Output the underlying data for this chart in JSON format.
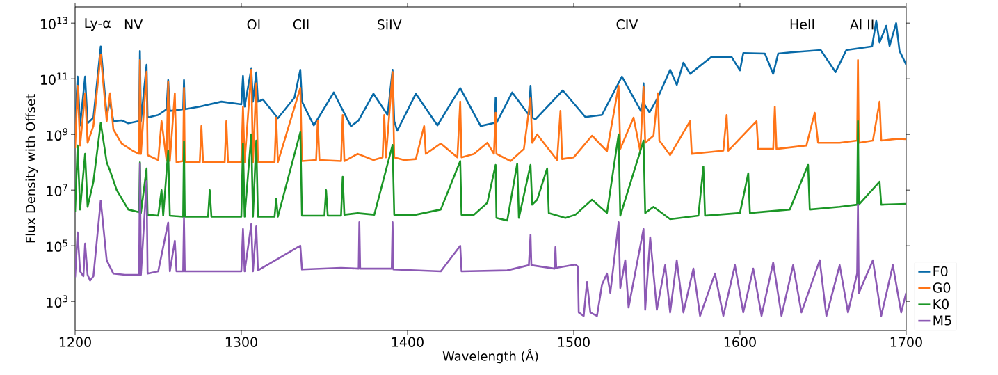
{
  "chart_data": {
    "type": "line",
    "xlabel": "Wavelength (Å)",
    "ylabel": "Flux Density with Offset",
    "log": "y",
    "legend": "bottom right",
    "xlim": [
      1200,
      1700
    ],
    "ylim": [
      90,
      38000000000000.0
    ],
    "xticks": [
      1200,
      1300,
      1400,
      1500,
      1600,
      1700
    ],
    "yticks": [
      {
        "value": 1000.0,
        "label": "10$^{3}$"
      },
      {
        "value": 100000.0,
        "label": "10$^{5}$"
      },
      {
        "value": 10000000.0,
        "label": "10$^{7}$"
      },
      {
        "value": 1000000000.0,
        "label": "10$^{9}$"
      },
      {
        "value": 100000000000.0,
        "label": "10$^{11}$"
      },
      {
        "value": 10000000000000.0,
        "label": "10$^{13}$"
      }
    ],
    "annotations": [
      "Ly-α",
      "NV",
      "OI",
      "CII",
      "SiIV",
      "CIV",
      "HeII",
      "Al II"
    ],
    "series": [
      {
        "name": "F0",
        "color": "#086aa8",
        "x": [
          1200,
          1201.5,
          1203,
          1206,
          1207.5,
          1211,
          1215.4,
          1219,
          1221,
          1223,
          1228,
          1232,
          1238.5,
          1239,
          1239.6,
          1243,
          1243.6,
          1250,
          1255,
          1256,
          1257,
          1265,
          1265.5,
          1266,
          1275,
          1288,
          1300,
          1301,
          1302,
          1306,
          1307,
          1309,
          1310,
          1313,
          1322,
          1332,
          1335.5,
          1336.5,
          1343.6,
          1355.6,
          1366,
          1370.6,
          1379.5,
          1388,
          1391,
          1392,
          1393.8,
          1405,
          1418,
          1431.7,
          1444,
          1452.5,
          1453,
          1453.5,
          1463,
          1473,
          1474,
          1475,
          1477,
          1493.4,
          1507,
          1517,
          1529,
          1540.5,
          1541.7,
          1542,
          1542.5,
          1545.6,
          1550.6,
          1558,
          1562,
          1566,
          1570,
          1583,
          1595,
          1600,
          1602,
          1615,
          1620,
          1623,
          1630.5,
          1648.6,
          1657.5,
          1664,
          1679.5,
          1682,
          1684,
          1688,
          1690,
          1694,
          1696,
          1700
        ],
        "values": [
          2100000000.0,
          120000000000.0,
          2100000000.0,
          120000000000.0,
          2500000000.0,
          4000000000.0,
          1450000000000.0,
          5000000000.0,
          15000000000.0,
          3000000000.0,
          3200000000.0,
          2500000000.0,
          3000000000.0,
          1000000000000.0,
          3000000000.0,
          320000000000.0,
          4000000000.0,
          5000000000.0,
          8000000000.0,
          90000000000.0,
          7000000000.0,
          8000000000.0,
          90000000000.0,
          8000000000.0,
          10000000000.0,
          15000000000.0,
          12000000000.0,
          126000000000.0,
          10000000000.0,
          230000000000.0,
          15000000000.0,
          170000000000.0,
          15000000000.0,
          18000000000.0,
          3800000000.0,
          21000000000.0,
          210000000000.0,
          15000000000.0,
          2100000000.0,
          32000000000.0,
          1950000000.0,
          3200000000.0,
          29000000000.0,
          5000000000.0,
          210000000000.0,
          3000000000.0,
          1350000000.0,
          29000000000.0,
          2100000000.0,
          46000000000.0,
          2000000000.0,
          2600000000.0,
          21000000000.0,
          2600000000.0,
          32000000000.0,
          5000000000.0,
          56000000000.0,
          4000000000.0,
          3500000000.0,
          38000000000.0,
          4200000000.0,
          5000000000.0,
          120000000000.0,
          6800000000.0,
          16000000000.0,
          68000000000.0,
          12000000000.0,
          6200000000.0,
          21000000000.0,
          210000000000.0,
          60000000000.0,
          380000000000.0,
          150000000000.0,
          620000000000.0,
          600000000000.0,
          200000000000.0,
          830000000000.0,
          800000000000.0,
          150000000000.0,
          800000000000.0,
          890000000000.0,
          1070000000000.0,
          174000000000.0,
          1070000000000.0,
          1450000000000.0,
          12000000000000.0,
          2000000000000.0,
          8000000000000.0,
          1500000000000.0,
          10000000000000.0,
          1000000000000.0,
          320000000000.0
        ]
      },
      {
        "name": "G0",
        "color": "#ff7417",
        "x": [
          1200,
          1201.5,
          1203,
          1206,
          1207.5,
          1211,
          1215.4,
          1219,
          1221,
          1223,
          1228,
          1235,
          1238.5,
          1239,
          1239.6,
          1243,
          1243.6,
          1250,
          1252,
          1255,
          1256,
          1257,
          1260,
          1261,
          1265,
          1265.5,
          1266,
          1275,
          1276,
          1277,
          1290,
          1291,
          1292,
          1300,
          1301,
          1302,
          1306,
          1307,
          1309,
          1310,
          1320,
          1321,
          1322,
          1335.5,
          1336.5,
          1345,
          1346,
          1347,
          1360,
          1361,
          1362,
          1370,
          1379.5,
          1385,
          1386,
          1387,
          1391,
          1392,
          1398,
          1405,
          1410,
          1411,
          1420,
          1430,
          1431.7,
          1432.5,
          1440,
          1448,
          1452,
          1453,
          1453.5,
          1462,
          1470,
          1474,
          1475,
          1478,
          1490,
          1492,
          1493,
          1500,
          1511,
          1520,
          1527,
          1528,
          1536,
          1540,
          1542,
          1543,
          1548,
          1550.6,
          1551.5,
          1558,
          1570,
          1571,
          1590,
          1592,
          1593,
          1610,
          1611,
          1620,
          1621,
          1622,
          1640,
          1645,
          1647,
          1660,
          1670.5,
          1671,
          1671.5,
          1680,
          1684,
          1685,
          1695,
          1700
        ],
        "values": [
          320000000.0,
          56000000000.0,
          400000000.0,
          30000000000.0,
          500000000.0,
          2000000000.0,
          740000000000.0,
          3000000000.0,
          30000000000.0,
          1500000000.0,
          470000000.0,
          250000000.0,
          200000000.0,
          470000000000.0,
          200000000.0,
          180000000000.0,
          180000000.0,
          120000000.0,
          3000000000.0,
          120000000.0,
          80000000000.0,
          110000000.0,
          30000000000.0,
          100000000.0,
          110000000.0,
          47000000000.0,
          100000000.0,
          100000000.0,
          2000000000.0,
          100000000.0,
          100000000.0,
          3000000000.0,
          100000000.0,
          100000000.0,
          10000000000.0,
          100000000.0,
          210000000000.0,
          100000000.0,
          68000000000.0,
          100000000.0,
          100000000.0,
          4000000000.0,
          100000000.0,
          47000000000.0,
          110000000.0,
          120000000.0,
          3000000000.0,
          120000000.0,
          110000000.0,
          5000000000.0,
          110000000.0,
          200000000.0,
          120000000.0,
          150000000.0,
          5000000000.0,
          150000000.0,
          174000000000.0,
          150000000.0,
          120000000.0,
          130000000.0,
          2000000000.0,
          200000000.0,
          470000000.0,
          150000000.0,
          15000000000.0,
          150000000.0,
          200000000.0,
          500000000.0,
          200000000.0,
          6000000000.0,
          200000000.0,
          110000000.0,
          300000000.0,
          20000000000.0,
          500000000.0,
          1000000000.0,
          120000000.0,
          7000000000.0,
          130000000.0,
          150000000.0,
          900000000.0,
          250000000.0,
          56000000000.0,
          300000000.0,
          4000000000.0,
          250000000.0,
          50000000000.0,
          500000000.0,
          900000000.0,
          30000000000.0,
          600000000.0,
          180000000.0,
          3000000000.0,
          200000000.0,
          260000000.0,
          5000000000.0,
          260000000.0,
          3000000000.0,
          300000000.0,
          300000000.0,
          10000000000.0,
          300000000.0,
          400000000.0,
          6000000000.0,
          500000000.0,
          500000000.0,
          600000000.0,
          470000000000.0,
          500000000.0,
          600000000.0,
          15000000000.0,
          600000000.0,
          700000000.0,
          680000000.0
        ]
      },
      {
        "name": "K0",
        "color": "#1b9626",
        "x": [
          1200,
          1201.5,
          1203,
          1206,
          1207.5,
          1211,
          1215.4,
          1219,
          1221,
          1225,
          1232,
          1238.5,
          1239,
          1239.6,
          1243,
          1243.6,
          1250,
          1252,
          1253,
          1256,
          1257,
          1265,
          1265.5,
          1266,
          1280,
          1281,
          1282,
          1300,
          1301,
          1302,
          1306,
          1307,
          1309,
          1310,
          1320,
          1321,
          1322,
          1335.5,
          1336.5,
          1350,
          1351,
          1352,
          1360,
          1361,
          1362,
          1370,
          1380,
          1391,
          1392,
          1405,
          1420,
          1431.7,
          1432.5,
          1440,
          1448,
          1453,
          1453.5,
          1460,
          1466,
          1467,
          1474,
          1475,
          1478,
          1484,
          1485,
          1495,
          1501,
          1511,
          1520,
          1527,
          1528,
          1542,
          1543,
          1548,
          1558,
          1575,
          1578,
          1579,
          1600,
          1605,
          1606,
          1630,
          1641,
          1642,
          1660,
          1670.5,
          1671,
          1671.5,
          1684,
          1685,
          1700
        ],
        "values": [
          1700000.0,
          400000000.0,
          2000000.0,
          200000000.0,
          2500000.0,
          20000000.0,
          2600000000.0,
          100000000.0,
          50000000.0,
          10000000.0,
          2000000.0,
          1600000.0,
          100000000.0,
          1500000.0,
          60000000.0,
          1300000.0,
          1200000.0,
          10000000.0,
          1200000.0,
          260000000.0,
          1200000.0,
          1100000.0,
          560000000.0,
          1100000.0,
          1100000.0,
          10000000.0,
          1100000.0,
          1100000.0,
          470000000.0,
          1100000.0,
          1000000000.0,
          1100000.0,
          600000000.0,
          1100000.0,
          1100000.0,
          5000000.0,
          1100000.0,
          1200000000.0,
          1200000.0,
          1200000.0,
          10000000.0,
          1200000.0,
          1200000.0,
          30000000.0,
          1300000.0,
          1480000.0,
          1300000.0,
          420000000.0,
          1300000.0,
          1300000.0,
          2000000.0,
          110000000.0,
          1300000.0,
          1300000.0,
          3500000.0,
          80000000.0,
          1000000.0,
          800000.0,
          90000000.0,
          1000000.0,
          80000000.0,
          3000000.0,
          4500000.0,
          60000000.0,
          1500000.0,
          1000000.0,
          1300000.0,
          4500000.0,
          1500000.0,
          1000000000.0,
          1200000.0,
          600000000.0,
          1500000.0,
          2500000.0,
          900000.0,
          1200000.0,
          70000000.0,
          1200000.0,
          1500000.0,
          40000000.0,
          1500000.0,
          2000000.0,
          80000000.0,
          2000000.0,
          2500000.0,
          3000000.0,
          3000000000.0,
          3000000.0,
          20000000.0,
          3000000.0,
          3200000.0
        ]
      },
      {
        "name": "M5",
        "color": "#8c59b4",
        "x": [
          1200,
          1201.5,
          1203,
          1205,
          1206,
          1207.5,
          1209,
          1211,
          1215.4,
          1219,
          1223,
          1230,
          1238.5,
          1239,
          1239.6,
          1243,
          1243.6,
          1250,
          1256,
          1257,
          1260,
          1261,
          1265,
          1265.5,
          1266,
          1280,
          1300,
          1301,
          1302,
          1306,
          1307,
          1309,
          1310,
          1335.5,
          1336.5,
          1360,
          1370.6,
          1371,
          1371.5,
          1390.5,
          1391,
          1391.5,
          1420,
          1431.7,
          1432.5,
          1460,
          1473,
          1474,
          1474.5,
          1488.5,
          1489,
          1489.5,
          1501,
          1502.5,
          1503,
          1506,
          1508,
          1510,
          1514,
          1517,
          1520,
          1522,
          1527,
          1528,
          1531,
          1533,
          1542,
          1543,
          1546,
          1550,
          1555,
          1558,
          1562,
          1566,
          1572,
          1576,
          1585,
          1590,
          1597,
          1602,
          1608,
          1613,
          1620,
          1625,
          1632,
          1637,
          1648,
          1652,
          1660,
          1665,
          1670.5,
          1671,
          1671.5,
          1680,
          1685,
          1692,
          1697,
          1700
        ],
        "values": [
          7400.0,
          300000.0,
          12000.0,
          8000.0,
          120000.0,
          9000.0,
          5600.0,
          8000.0,
          4200000.0,
          30000.0,
          10000.0,
          9000.0,
          9000.0,
          91000000.0,
          9000.0,
          21000000.0,
          10000.0,
          12000.0,
          680000.0,
          12000.0,
          150000.0,
          12000.0,
          12000.0,
          1000000.0,
          12000.0,
          12000.0,
          12000.0,
          400000.0,
          12000.0,
          600000.0,
          12000.0,
          500000.0,
          13000.0,
          100000.0,
          14000.0,
          16000.0,
          15000.0,
          700000.0,
          15000.0,
          15000.0,
          700000.0,
          14000.0,
          12000.0,
          100000.0,
          12000.0,
          13000.0,
          20000.0,
          250000.0,
          20000.0,
          15000.0,
          90000.0,
          16000.0,
          21000.0,
          18000.0,
          400.0,
          300.0,
          5000.0,
          400.0,
          300.0,
          4000.0,
          10000.0,
          2000.0,
          700000.0,
          3000.0,
          30000.0,
          600.0,
          400000.0,
          500.0,
          200000.0,
          500.0,
          20000.0,
          400.0,
          30000.0,
          400.0,
          15000.0,
          300.0,
          10000.0,
          300.0,
          20000.0,
          400.0,
          15000.0,
          300.0,
          25000.0,
          300.0,
          20000.0,
          400.0,
          30000.0,
          300.0,
          20000.0,
          400.0,
          10000.0,
          3000000.0,
          2000.0,
          30000.0,
          300.0,
          20000.0,
          400.0,
          2000.0
        ]
      }
    ]
  }
}
